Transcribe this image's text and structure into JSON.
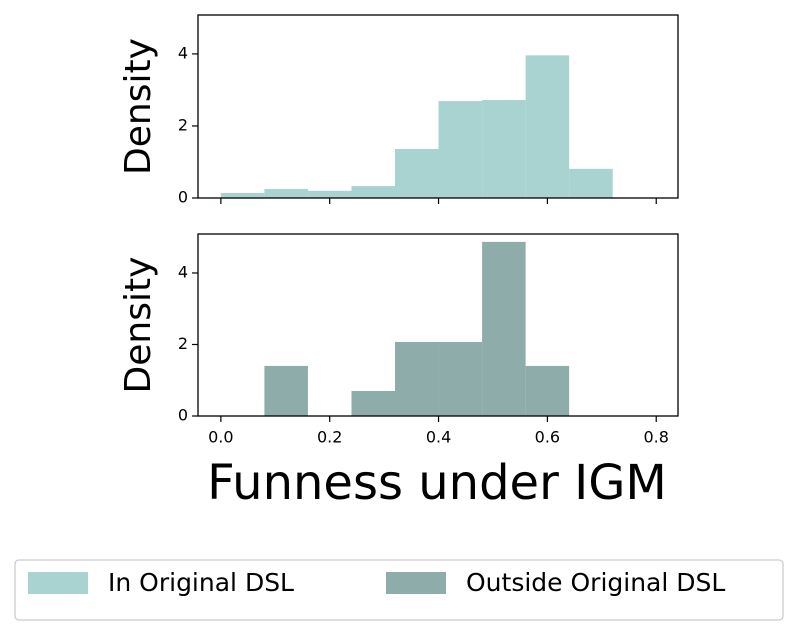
{
  "chart_data": [
    {
      "type": "histogram",
      "ylabel": "Density",
      "bins": [
        0,
        0.08,
        0.16,
        0.24,
        0.32,
        0.4,
        0.48,
        0.56,
        0.64,
        0.72
      ],
      "series": [
        {
          "name": "In Original DSL",
          "color": "#a8d3d1",
          "values": [
            0.14,
            0.25,
            0.2,
            0.33,
            1.36,
            2.69,
            2.72,
            3.96,
            0.81
          ]
        }
      ],
      "xlim": [
        -0.042,
        0.84
      ],
      "ylim": [
        0,
        5.08
      ],
      "yticks": [
        0,
        2,
        4
      ],
      "xticks": [
        0,
        0.2,
        0.4,
        0.6,
        0.8
      ]
    },
    {
      "type": "histogram",
      "ylabel": "Density",
      "xlabel": "Funness under IGM",
      "bins": [
        0,
        0.08,
        0.16,
        0.24,
        0.32,
        0.4,
        0.48,
        0.56,
        0.64
      ],
      "series": [
        {
          "name": "Outside Original DSL",
          "color": "#8eadaa",
          "values": [
            0,
            1.4,
            0,
            0.7,
            2.07,
            2.07,
            4.87,
            1.4
          ]
        }
      ],
      "xlim": [
        -0.042,
        0.84
      ],
      "ylim": [
        0,
        5.09
      ],
      "yticks": [
        0,
        2,
        4
      ],
      "xticks": [
        {
          "value": 0,
          "label": "0.0"
        },
        0.2,
        0.4,
        0.6,
        0.8
      ]
    }
  ]
}
